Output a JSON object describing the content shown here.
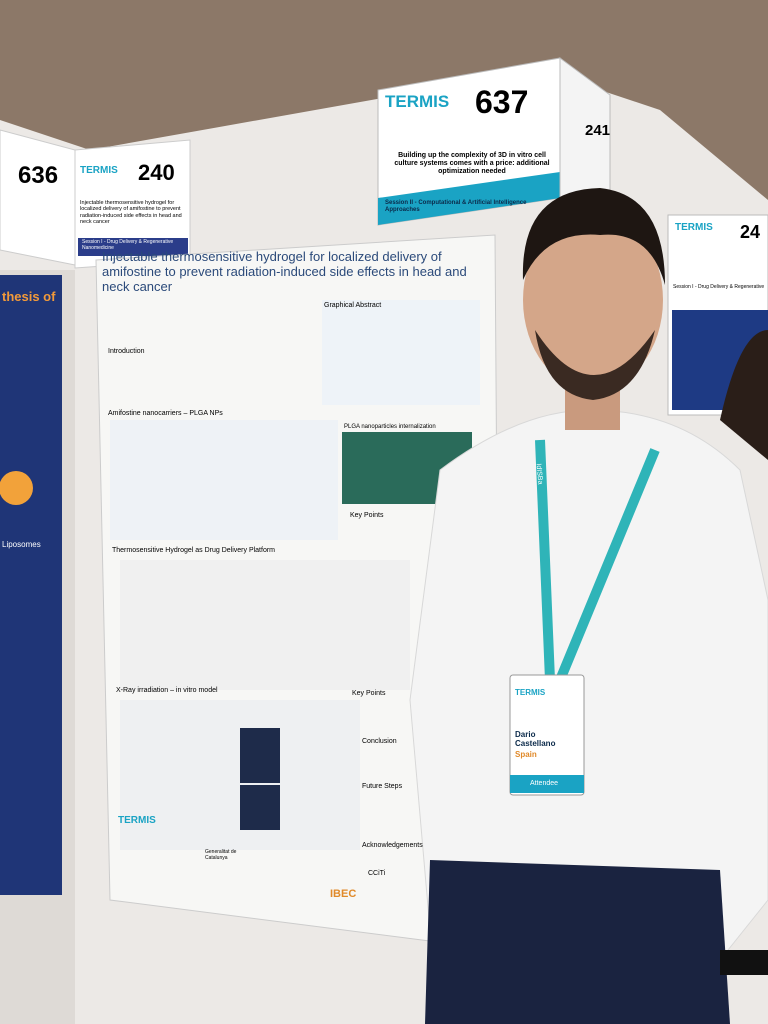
{
  "scene": {
    "left_sign": {
      "number": "636",
      "number2": "240",
      "brand": "TERMIS",
      "title": "Injectable thermosensitive hydrogel for localized delivery of amifostine to prevent radiation-induced side effects in head and neck cancer",
      "session": "Session I - Drug Delivery & Regenerative Nanomedicine"
    },
    "top_sign": {
      "brand": "TERMIS",
      "number": "637",
      "side_number": "241",
      "title": "Building up the complexity of 3D in vitro cell culture systems comes with a price: additional optimization needed",
      "session": "Session II - Computational & Artificial Intelligence Approaches"
    },
    "right_sign": {
      "brand": "TERMIS",
      "number": "24",
      "session": "Session I - Drug Delivery & Regenerative"
    },
    "left_poster": {
      "heading": "thesis of",
      "label": "Liposomes"
    },
    "poster": {
      "title": "Injectable thermosensitive hydrogel for localized delivery of amifostine to prevent radiation-induced side effects in head and neck cancer",
      "sections": [
        "Introduction",
        "Graphical Abstract",
        "Amifostine nanocarriers – PLGA NPs",
        "PLGA nanoparticles internalization",
        "Key Points",
        "Thermosensitive Hydrogel as Drug Delivery Platform",
        "X-Ray irradiation – in vitro model",
        "Key Points",
        "Conclusion",
        "Future Steps",
        "Acknowledgements"
      ],
      "logos": [
        "TERMIS",
        "Generalitat de Catalunya",
        "IBEC",
        "CCiTi"
      ]
    },
    "badge": {
      "brand": "TERMIS",
      "name": "Dario Castellano",
      "country": "Spain",
      "role": "Attendee"
    },
    "lanyard": "IdISBa"
  }
}
